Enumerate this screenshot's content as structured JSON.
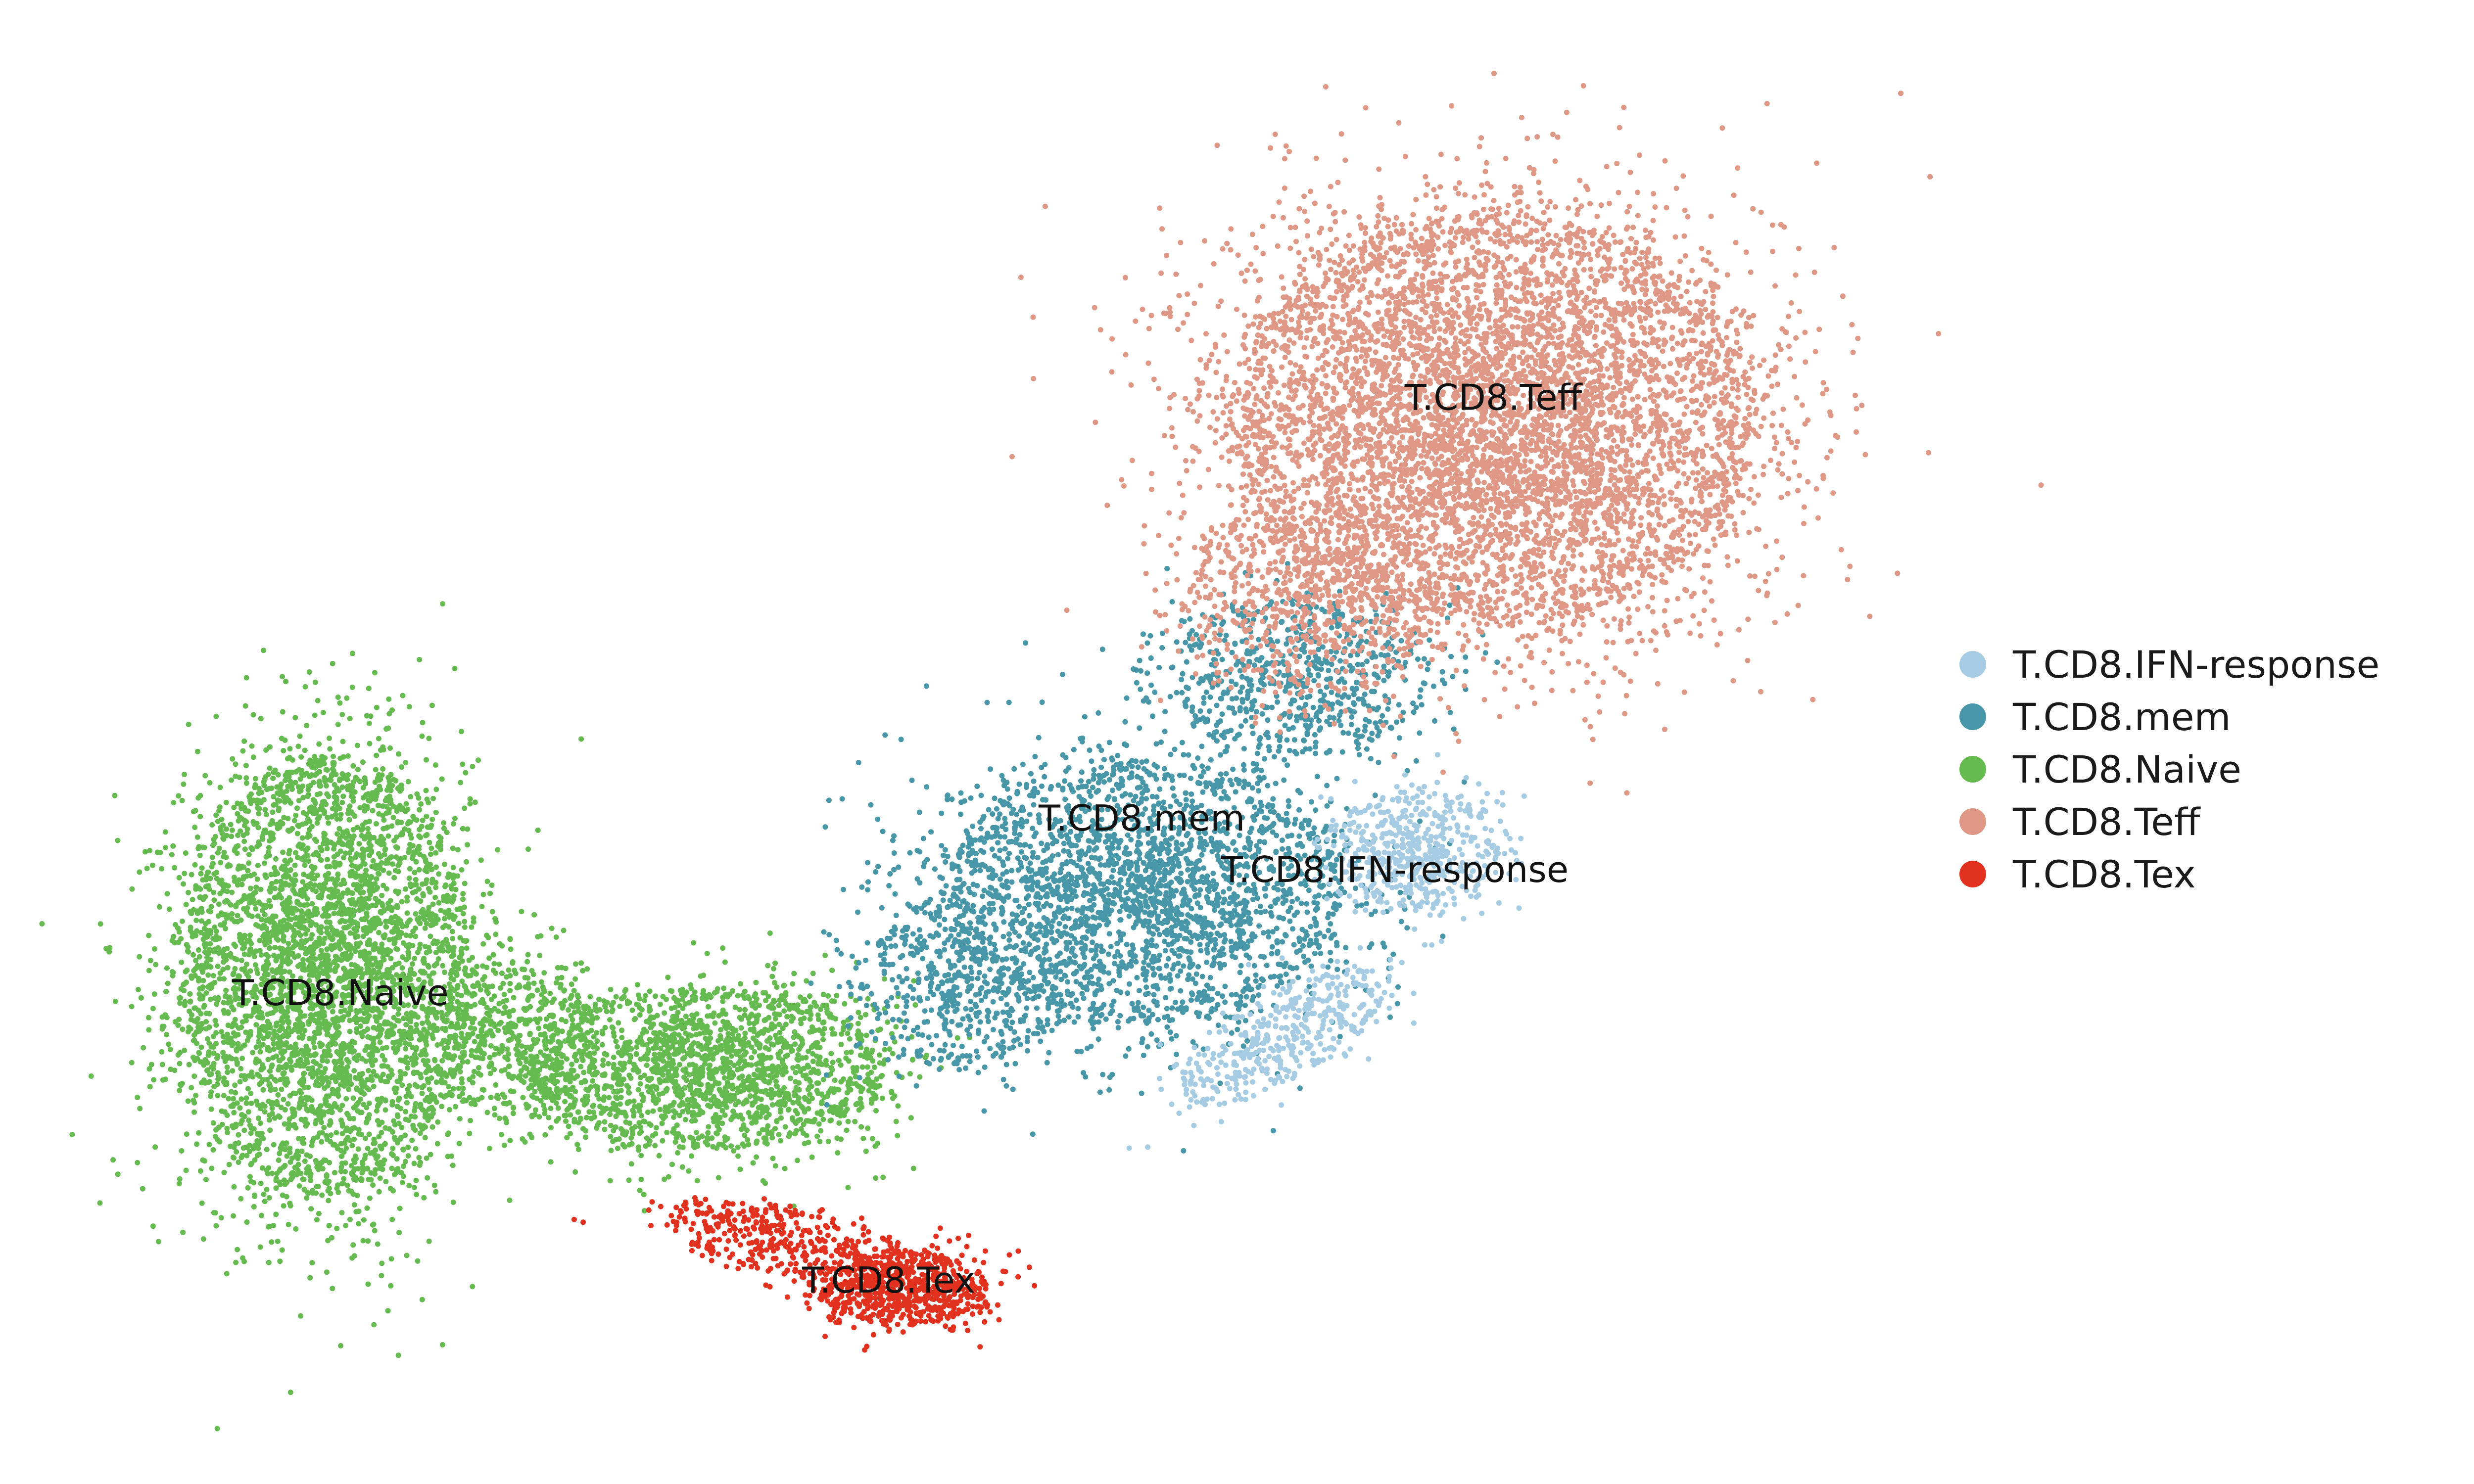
{
  "chart_data": {
    "type": "scatter",
    "title": "",
    "xlabel": "",
    "ylabel": "",
    "axes_visible": false,
    "grid": false,
    "legend_position": "right",
    "series": [
      {
        "name": "T.CD8.IFN-response",
        "color": "#a6cce3",
        "cluster_label": "T.CD8.IFN-response",
        "center": [
          8.9,
          4.9
        ]
      },
      {
        "name": "T.CD8.mem",
        "color": "#4797a8",
        "cluster_label": "T.CD8.mem",
        "center": [
          7.1,
          5.4
        ]
      },
      {
        "name": "T.CD8.Naive",
        "color": "#66bb50",
        "cluster_label": "T.CD8.Naive",
        "center": [
          1.4,
          3.7
        ]
      },
      {
        "name": "T.CD8.Teff",
        "color": "#df9886",
        "cluster_label": "T.CD8.Teff",
        "center": [
          9.6,
          9.5
        ]
      },
      {
        "name": "T.CD8.Tex",
        "color": "#e2321f",
        "cluster_label": "T.CD8.Tex",
        "center": [
          5.3,
          0.9
        ]
      }
    ]
  }
}
